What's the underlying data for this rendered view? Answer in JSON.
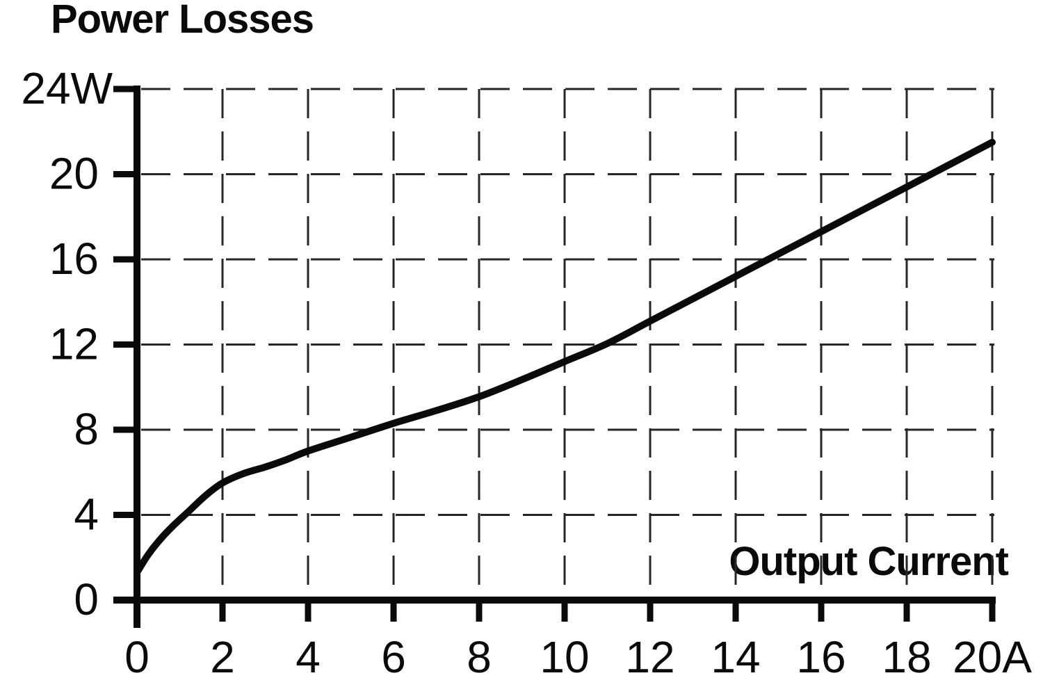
{
  "page": {
    "background": "#ffffff",
    "ink": "#0a0a0a",
    "grid_color": "#262626"
  },
  "chart_data": {
    "type": "line",
    "title": "Power Losses",
    "xlabel": "Output Current",
    "ylabel": "Power Losses",
    "x_unit": "A",
    "y_unit": "W",
    "xlim": [
      0,
      20
    ],
    "ylim": [
      0,
      24
    ],
    "x_ticks": [
      0,
      2,
      4,
      6,
      8,
      10,
      12,
      14,
      16,
      18,
      20
    ],
    "x_tick_labels": [
      "0",
      "2",
      "4",
      "6",
      "8",
      "10",
      "12",
      "14",
      "16",
      "18",
      "20A"
    ],
    "y_ticks": [
      0,
      4,
      8,
      12,
      16,
      20,
      24
    ],
    "y_tick_labels": [
      "0",
      "4",
      "8",
      "12",
      "16",
      "20",
      "24W"
    ],
    "grid": "dashed",
    "legend": "none",
    "series": [
      {
        "name": "power-losses-vs-output-current",
        "x": [
          0,
          0.25,
          0.5,
          0.8,
          1.2,
          1.6,
          2,
          2.5,
          3,
          3.5,
          4,
          5,
          6,
          7,
          8,
          9,
          10,
          11,
          12,
          13,
          14,
          15,
          16,
          17,
          18,
          19,
          20
        ],
        "y": [
          1.3,
          2.1,
          2.75,
          3.4,
          4.15,
          4.9,
          5.5,
          5.95,
          6.25,
          6.6,
          7.0,
          7.65,
          8.3,
          8.9,
          9.55,
          10.35,
          11.2,
          12.05,
          13.1,
          14.15,
          15.2,
          16.25,
          17.3,
          18.35,
          19.4,
          20.45,
          21.5
        ]
      }
    ]
  }
}
